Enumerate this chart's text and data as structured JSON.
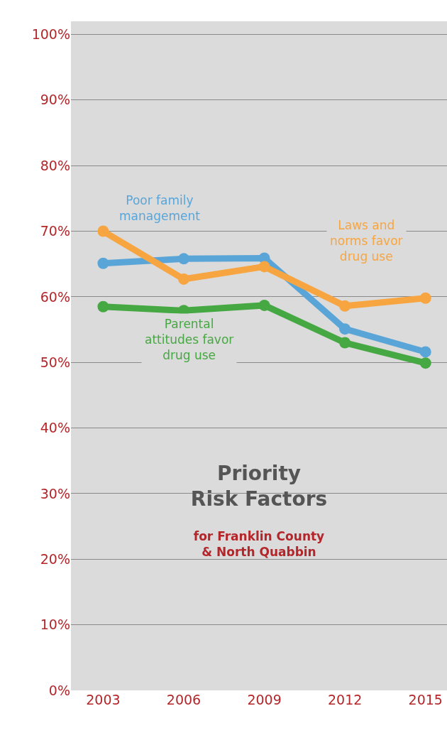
{
  "chart_data": {
    "type": "line",
    "title": "Priority Risk Factors",
    "subtitle": "for Franklin County & North Quabbin",
    "x": [
      2003,
      2006,
      2009,
      2012,
      2015
    ],
    "series": [
      {
        "name": "Poor family management",
        "color": "#5aa5d8",
        "values": [
          65.1,
          65.8,
          65.9,
          55.1,
          51.6
        ]
      },
      {
        "name": "Laws and norms favor drug use",
        "color": "#f7a541",
        "values": [
          70.0,
          62.7,
          64.6,
          58.6,
          59.8
        ]
      },
      {
        "name": "Parental attitudes favor drug use",
        "color": "#46a842",
        "values": [
          58.5,
          57.9,
          58.7,
          53.0,
          49.9
        ]
      }
    ],
    "xlim": [
      2001.8,
      2015.8
    ],
    "xticks": [
      2003,
      2006,
      2009,
      2012,
      2015
    ],
    "ylim": [
      0,
      102
    ],
    "yticks": [
      {
        "value": 0,
        "label": "0%"
      },
      {
        "value": 10,
        "label": "10%"
      },
      {
        "value": 20,
        "label": "20%"
      },
      {
        "value": 30,
        "label": "30%"
      },
      {
        "value": 40,
        "label": "40%"
      },
      {
        "value": 50,
        "label": "50%"
      },
      {
        "value": 60,
        "label": "60%"
      },
      {
        "value": 70,
        "label": "70%"
      },
      {
        "value": 80,
        "label": "80%"
      },
      {
        "value": 90,
        "label": "90%"
      },
      {
        "value": 100,
        "label": "100%"
      }
    ],
    "grid": "y",
    "legend": false,
    "marker": "circle",
    "line_style": "solid"
  }
}
